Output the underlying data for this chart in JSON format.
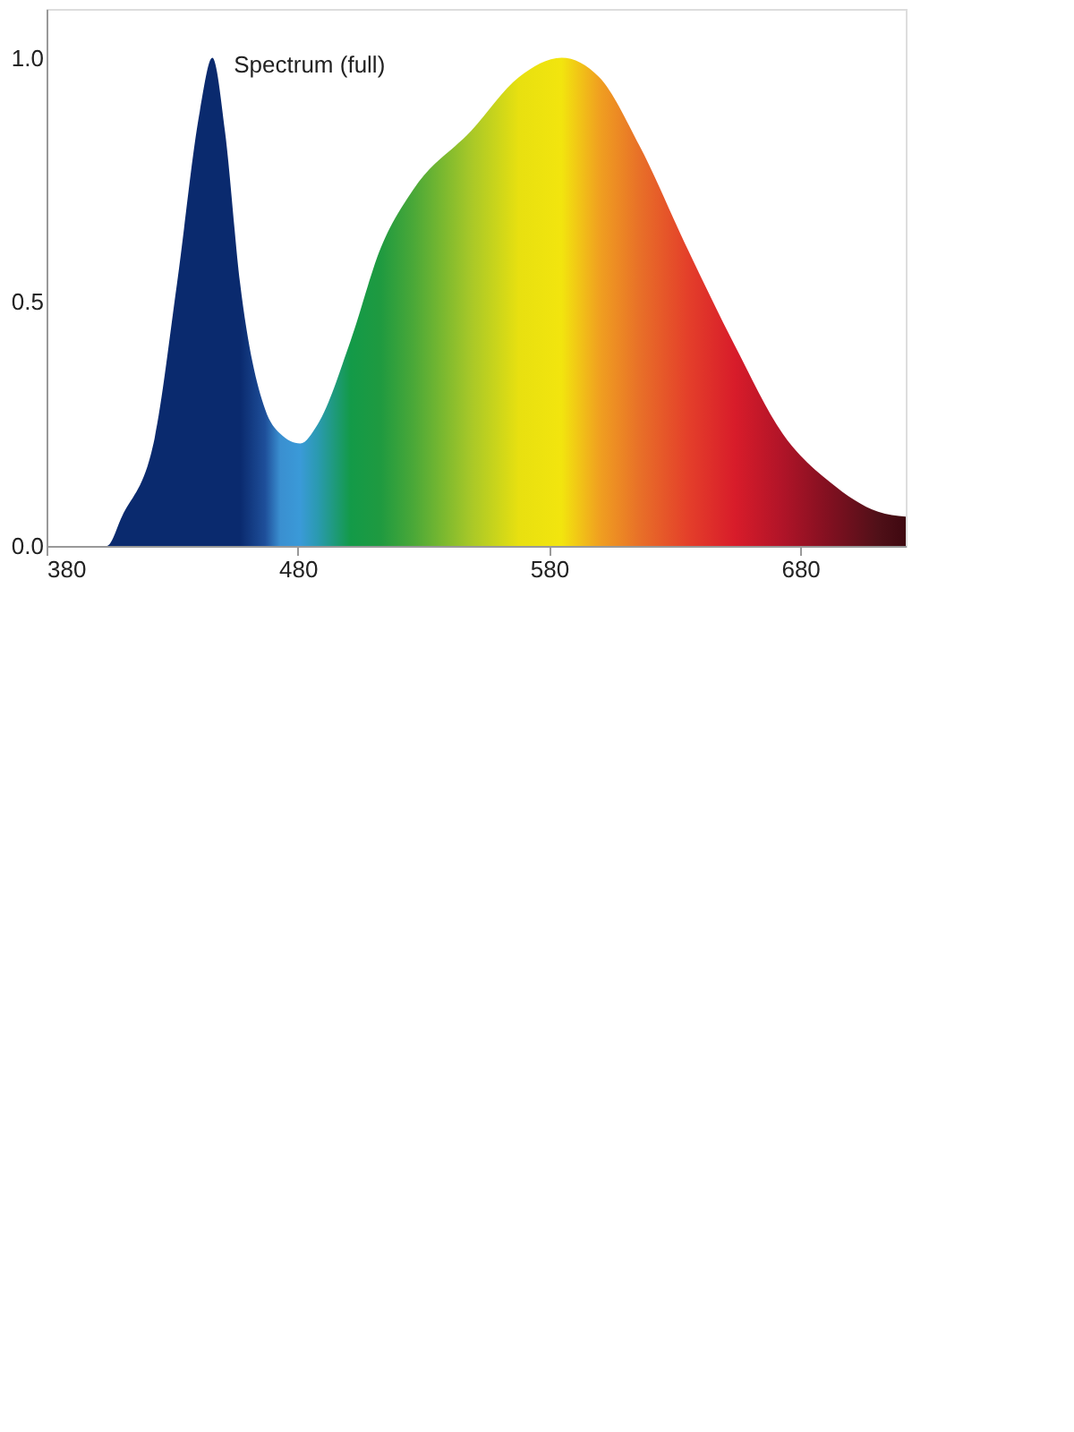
{
  "chart_data": {
    "type": "area",
    "x": [
      380,
      404,
      410,
      423,
      432,
      441,
      446,
      451,
      457,
      467,
      473,
      481,
      488,
      501,
      513,
      526,
      549,
      568,
      585,
      600,
      616,
      635,
      654,
      673,
      692,
      711,
      722
    ],
    "series": [
      {
        "name": "Spectrum (full)",
        "values": [
          0,
          0,
          0.06,
          0.22,
          0.54,
          0.89,
          1.0,
          0.85,
          0.54,
          0.28,
          0.23,
          0.21,
          0.25,
          0.42,
          0.61,
          0.73,
          0.85,
          0.96,
          1.0,
          0.96,
          0.82,
          0.61,
          0.41,
          0.23,
          0.13,
          0.07,
          0.06
        ],
        "colors": [
          "#0a2a6e",
          "#0a2a6e",
          "#0a2a6e",
          "#0a2a6e",
          "#0a2a6e",
          "#0a2a6e",
          "#0a2a6e",
          "#0a2a6e",
          "#0a2a6e",
          "#1e4f9a",
          "#3a8fd0",
          "#3a9ad8",
          "#2a9ab0",
          "#139a48",
          "#1f9a40",
          "#4aa838",
          "#a8c828",
          "#e8e010",
          "#f2e50e",
          "#f0a020",
          "#e87028",
          "#e4402a",
          "#d81c2a",
          "#b01428",
          "#801020",
          "#501018",
          "#3e0810"
        ]
      }
    ],
    "xlim": [
      380,
      722
    ],
    "ylim": [
      0,
      1.1
    ],
    "xticks": [
      380,
      480,
      580,
      680
    ],
    "yticks": [
      {
        "value": 0,
        "label": "0.0"
      },
      {
        "value": 0.5,
        "label": "0.5"
      },
      {
        "value": 1.0,
        "label": "1.0"
      }
    ],
    "grid": false
  }
}
